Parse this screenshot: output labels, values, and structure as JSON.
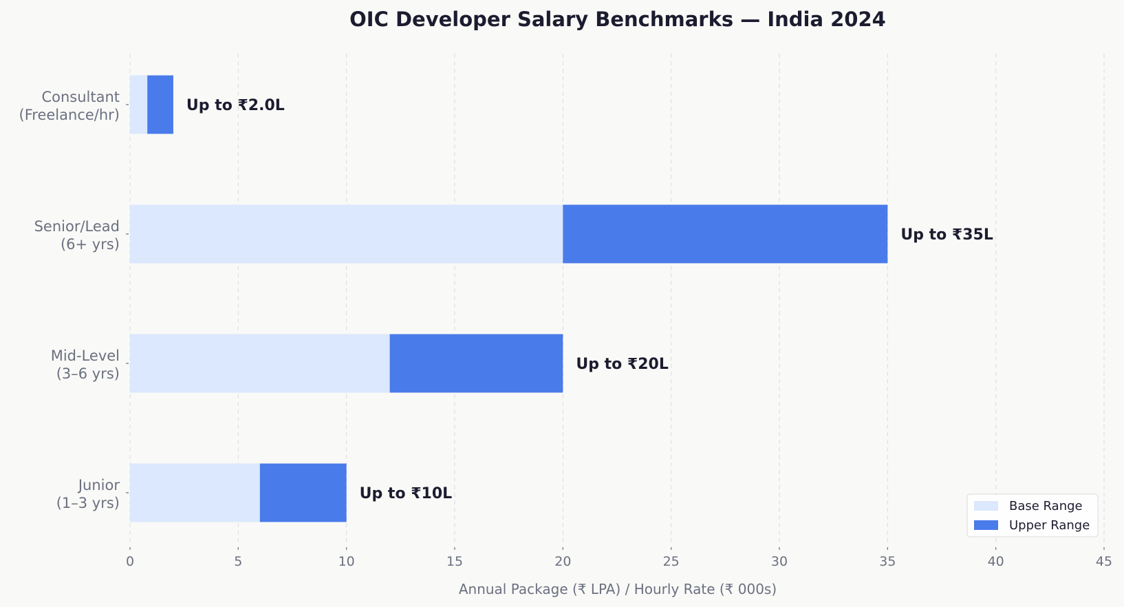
{
  "chart_data": {
    "type": "bar",
    "orientation": "horizontal",
    "stacked": true,
    "title": "OIC Developer Salary Benchmarks — India 2024",
    "xlabel": "Annual Package (₹ LPA) / Hourly Rate (₹ 000s)",
    "ylabel": "",
    "xlim": [
      0,
      45
    ],
    "xticks": [
      0,
      5,
      10,
      15,
      20,
      25,
      30,
      35,
      40,
      45
    ],
    "grid": "vertical-dashed",
    "legend_position": "bottom-right",
    "categories": [
      [
        "Junior",
        "(1–3 yrs)"
      ],
      [
        "Mid-Level",
        "(3–6 yrs)"
      ],
      [
        "Senior/Lead",
        "(6+ yrs)"
      ],
      [
        "Consultant",
        "(Freelance/hr)"
      ]
    ],
    "series": [
      {
        "name": "Base Range",
        "values": [
          6,
          12,
          20,
          0.8
        ],
        "color": "#dbe8fd"
      },
      {
        "name": "Upper Range",
        "values": [
          4,
          8,
          15,
          1.2
        ],
        "color": "#4a7bea"
      }
    ],
    "totals": [
      10,
      20,
      35,
      2.0
    ],
    "bar_labels": [
      "Up to ₹10L",
      "Up to ₹20L",
      "Up to ₹35L",
      "Up to ₹2.0L"
    ]
  }
}
